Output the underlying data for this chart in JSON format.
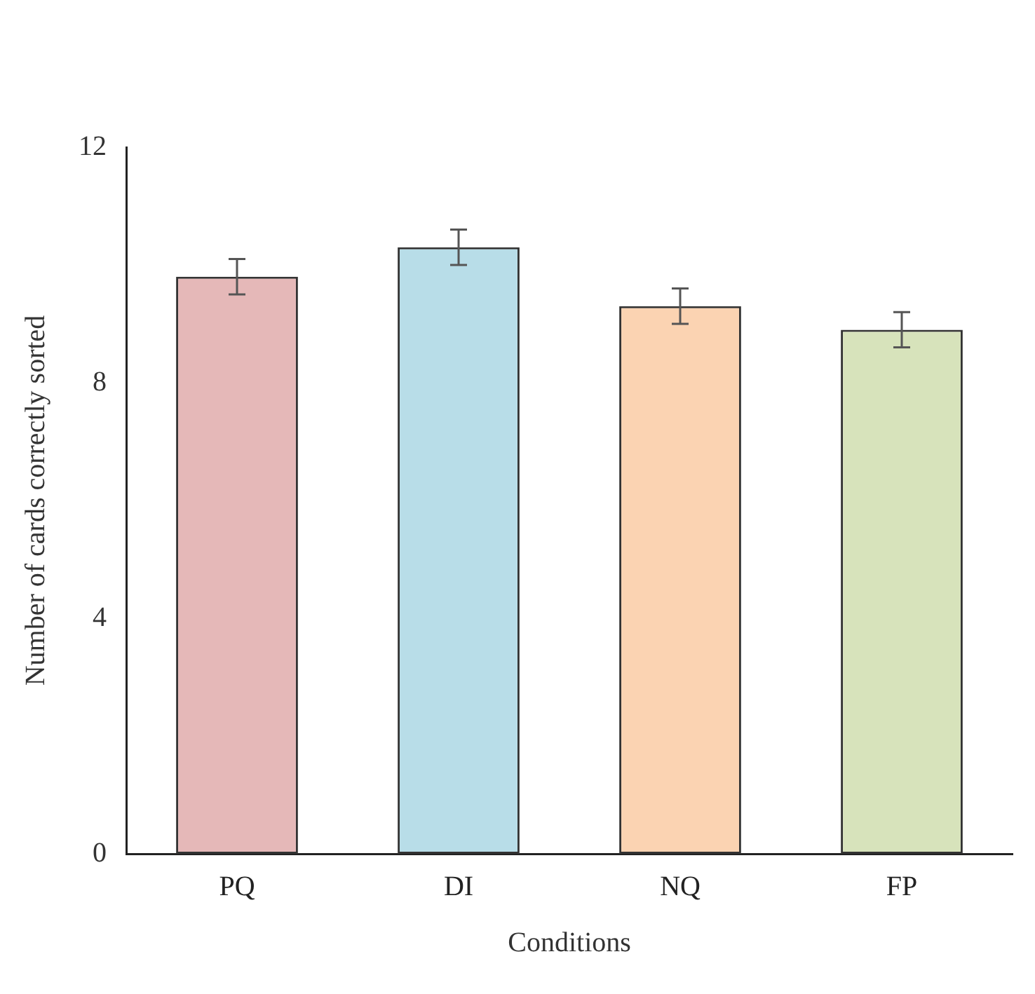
{
  "chart_data": {
    "type": "bar",
    "xlabel": "Conditions",
    "ylabel": "Number of cards correctly sorted",
    "categories": [
      "PQ",
      "DI",
      "NQ",
      "FP"
    ],
    "values": [
      9.8,
      10.3,
      9.3,
      8.9
    ],
    "colors": [
      "#e5b8b8",
      "#b8dde8",
      "#fbd3b2",
      "#d7e3bb"
    ],
    "errors": [
      0.3,
      0.3,
      0.3,
      0.3
    ],
    "ylim": [
      0,
      12
    ],
    "yticks": [
      0,
      4,
      8,
      12
    ],
    "grid": false,
    "legend": false
  }
}
